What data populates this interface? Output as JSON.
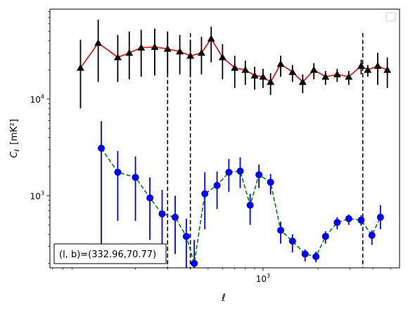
{
  "chart_data": {
    "type": "line",
    "title": "",
    "xlabel": "ℓ",
    "ylabel_main": "C",
    "ylabel_sub": "ℓ",
    "ylabel_units": "[mK²]",
    "xscale": "log",
    "yscale": "log",
    "xlim": [
      68,
      5600
    ],
    "ylim": [
      180,
      85000
    ],
    "x_ticks": [
      {
        "value": 1000,
        "label": "10",
        "exp": "3"
      }
    ],
    "y_ticks": [
      {
        "value": 1000,
        "label": "10",
        "exp": "3"
      },
      {
        "value": 10000,
        "label": "10",
        "exp": "4"
      }
    ],
    "grid": false,
    "legend": "top-right (empty box)",
    "annotation": "(l, b)=(332.96,70.77)",
    "vlines": [
      300,
      400,
      3520
    ],
    "series": [
      {
        "color": "#ff0000",
        "marker_color": "#000000",
        "marker": "triangle",
        "linestyle": "solid",
        "x": [
          100,
          125,
          160,
          185,
          215,
          255,
          300,
          350,
          400,
          460,
          520,
          600,
          700,
          800,
          900,
          1000,
          1100,
          1250,
          1450,
          1650,
          1900,
          2200,
          2550,
          2950,
          3450,
          3750,
          4250,
          4800
        ],
        "y": [
          21000,
          38000,
          27000,
          30000,
          34000,
          34500,
          33000,
          31000,
          28000,
          30000,
          42000,
          27000,
          21000,
          20000,
          17500,
          17000,
          15000,
          23000,
          19000,
          15000,
          20000,
          17000,
          18000,
          17000,
          22000,
          20000,
          22000,
          20000
        ],
        "err_low": [
          13000,
          23000,
          12000,
          14000,
          17000,
          17000,
          15000,
          13000,
          11000,
          12000,
          18000,
          11000,
          8000,
          6000,
          5000,
          4000,
          4000,
          6000,
          4000,
          3500,
          4000,
          3000,
          3000,
          3000,
          4000,
          3000,
          8000,
          7000
        ],
        "err_high": [
          20000,
          28000,
          19000,
          20000,
          18000,
          19000,
          17000,
          15000,
          13000,
          14000,
          14000,
          10000,
          7000,
          5000,
          4000,
          3500,
          3500,
          5000,
          3500,
          3000,
          3500,
          2500,
          2500,
          2500,
          3500,
          2500,
          8000,
          7000
        ]
      },
      {
        "color": "#008000",
        "marker_color": "#0000ff",
        "marker": "circle",
        "linestyle": "dashed",
        "x": [
          130,
          160,
          200,
          240,
          280,
          330,
          380,
          420,
          480,
          560,
          650,
          750,
          850,
          950,
          1100,
          1250,
          1450,
          1700,
          1950,
          2200,
          2550,
          2950,
          3450,
          3950,
          4400
        ],
        "y": [
          3100,
          1750,
          1550,
          950,
          650,
          600,
          380,
          200,
          1050,
          1280,
          1750,
          1800,
          800,
          1650,
          1380,
          440,
          340,
          250,
          235,
          380,
          530,
          580,
          560,
          390,
          600
        ],
        "err_low": [
          2900,
          1200,
          1000,
          600,
          400,
          350,
          200,
          50,
          600,
          550,
          650,
          600,
          300,
          450,
          350,
          120,
          80,
          40,
          30,
          60,
          80,
          80,
          70,
          80,
          150
        ],
        "err_high": [
          2800,
          1150,
          1000,
          600,
          500,
          400,
          200,
          150,
          700,
          500,
          650,
          700,
          250,
          450,
          300,
          100,
          60,
          30,
          30,
          50,
          70,
          60,
          70,
          50,
          200
        ]
      }
    ]
  }
}
